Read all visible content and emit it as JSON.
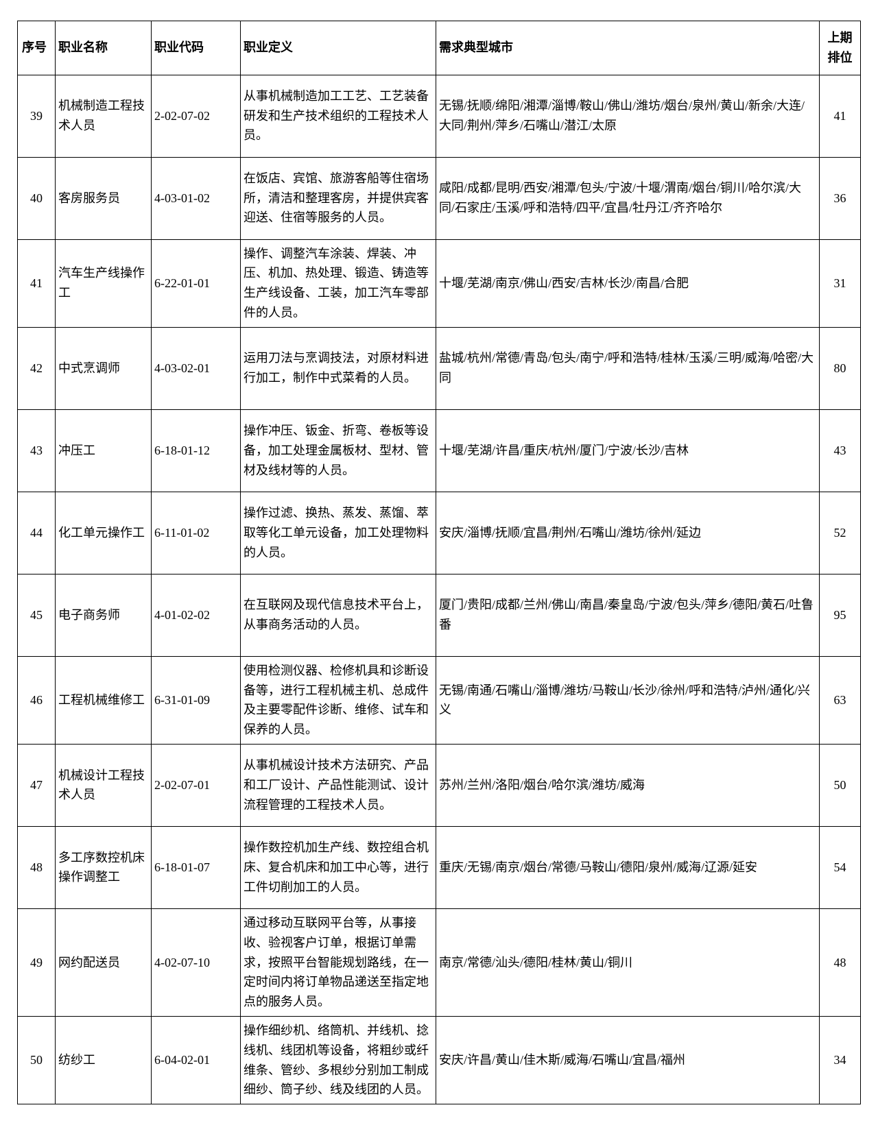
{
  "headers": {
    "seq": "序号",
    "name": "职业名称",
    "code": "职业代码",
    "definition": "职业定义",
    "cities": "需求典型城市",
    "rank": "上期排位"
  },
  "rows": [
    {
      "seq": "39",
      "name": "机械制造工程技术人员",
      "code": "2-02-07-02",
      "definition": "从事机械制造加工工艺、工艺装备研发和生产技术组织的工程技术人员。",
      "cities": "无锡/抚顺/绵阳/湘潭/淄博/鞍山/佛山/潍坊/烟台/泉州/黄山/新余/大连/大同/荆州/萍乡/石嘴山/潜江/太原",
      "rank": "41"
    },
    {
      "seq": "40",
      "name": "客房服务员",
      "code": "4-03-01-02",
      "definition": "在饭店、宾馆、旅游客船等住宿场所，清洁和整理客房，并提供宾客迎送、住宿等服务的人员。",
      "cities": "咸阳/成都/昆明/西安/湘潭/包头/宁波/十堰/渭南/烟台/铜川/哈尔滨/大同/石家庄/玉溪/呼和浩特/四平/宜昌/牡丹江/齐齐哈尔",
      "rank": "36"
    },
    {
      "seq": "41",
      "name": "汽车生产线操作工",
      "code": "6-22-01-01",
      "definition": "操作、调整汽车涂装、焊装、冲压、机加、热处理、锻造、铸造等生产线设备、工装，加工汽车零部件的人员。",
      "cities": "十堰/芜湖/南京/佛山/西安/吉林/长沙/南昌/合肥",
      "rank": "31"
    },
    {
      "seq": "42",
      "name": "中式烹调师",
      "code": "4-03-02-01",
      "definition": "运用刀法与烹调技法，对原材料进行加工，制作中式菜肴的人员。",
      "cities": "盐城/杭州/常德/青岛/包头/南宁/呼和浩特/桂林/玉溪/三明/威海/哈密/大同",
      "rank": "80"
    },
    {
      "seq": "43",
      "name": "冲压工",
      "code": "6-18-01-12",
      "definition": "操作冲压、钣金、折弯、卷板等设备，加工处理金属板材、型材、管材及线材等的人员。",
      "cities": "十堰/芜湖/许昌/重庆/杭州/厦门/宁波/长沙/吉林",
      "rank": "43"
    },
    {
      "seq": "44",
      "name": "化工单元操作工",
      "code": "6-11-01-02",
      "definition": "操作过滤、换热、蒸发、蒸馏、萃取等化工单元设备，加工处理物料的人员。",
      "cities": "安庆/淄博/抚顺/宜昌/荆州/石嘴山/潍坊/徐州/延边",
      "rank": "52"
    },
    {
      "seq": "45",
      "name": "电子商务师",
      "code": "4-01-02-02",
      "definition": "在互联网及现代信息技术平台上，从事商务活动的人员。",
      "cities": "厦门/贵阳/成都/兰州/佛山/南昌/秦皇岛/宁波/包头/萍乡/德阳/黄石/吐鲁番",
      "rank": "95"
    },
    {
      "seq": "46",
      "name": "工程机械维修工",
      "code": "6-31-01-09",
      "definition": "使用检测仪器、检修机具和诊断设备等，进行工程机械主机、总成件及主要零配件诊断、维修、试车和保养的人员。",
      "cities": "无锡/南通/石嘴山/淄博/潍坊/马鞍山/长沙/徐州/呼和浩特/泸州/通化/兴义",
      "rank": "63"
    },
    {
      "seq": "47",
      "name": "机械设计工程技术人员",
      "code": "2-02-07-01",
      "definition": "从事机械设计技术方法研究、产品和工厂设计、产品性能测试、设计流程管理的工程技术人员。",
      "cities": "苏州/兰州/洛阳/烟台/哈尔滨/潍坊/威海",
      "rank": "50"
    },
    {
      "seq": "48",
      "name": "多工序数控机床操作调整工",
      "code": "6-18-01-07",
      "definition": "操作数控机加生产线、数控组合机床、复合机床和加工中心等，进行工件切削加工的人员。",
      "cities": "重庆/无锡/南京/烟台/常德/马鞍山/德阳/泉州/威海/辽源/延安",
      "rank": "54"
    },
    {
      "seq": "49",
      "name": "网约配送员",
      "code": "4-02-07-10",
      "definition": "通过移动互联网平台等，从事接收、验视客户订单，根据订单需求，按照平台智能规划路线，在一定时间内将订单物品递送至指定地点的服务人员。",
      "cities": "南京/常德/汕头/德阳/桂林/黄山/铜川",
      "rank": "48"
    },
    {
      "seq": "50",
      "name": "纺纱工",
      "code": "6-04-02-01",
      "definition": "操作细纱机、络筒机、并线机、捻线机、线团机等设备，将粗纱或纤维条、管纱、多根纱分别加工制成细纱、筒子纱、线及线团的人员。",
      "cities": "安庆/许昌/黄山/佳木斯/威海/石嘴山/宜昌/福州",
      "rank": "34"
    }
  ]
}
